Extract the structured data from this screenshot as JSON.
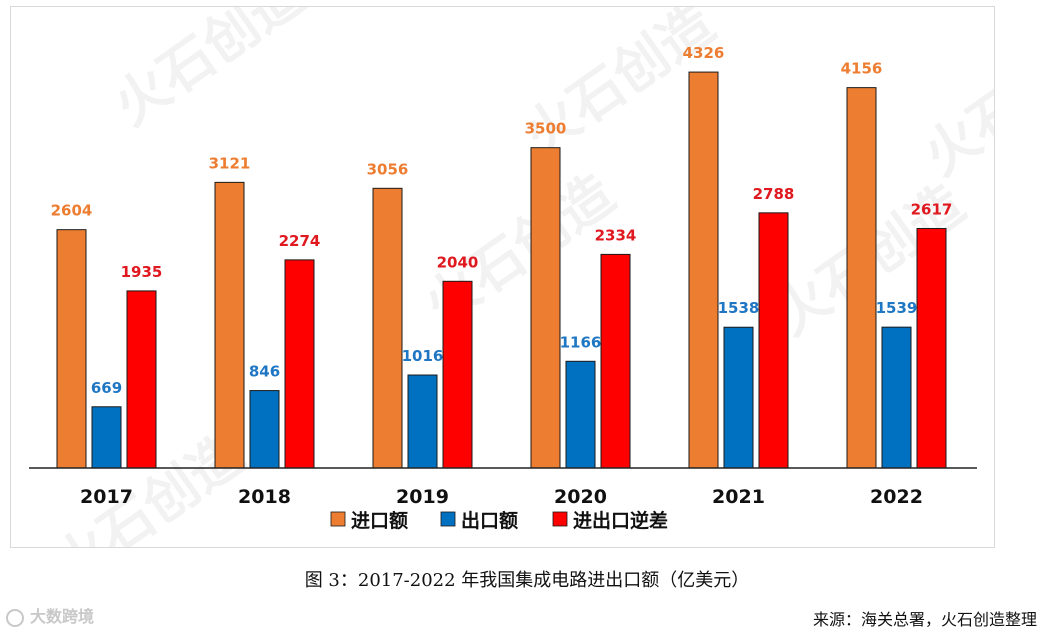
{
  "chart_data": {
    "type": "bar",
    "title": "",
    "xlabel": "",
    "ylabel": "",
    "ylim": [
      0,
      4600
    ],
    "grid": false,
    "categories": [
      "2017",
      "2018",
      "2019",
      "2020",
      "2021",
      "2022"
    ],
    "series": [
      {
        "name": "进口额",
        "color": "#ED7D31",
        "label_color": "#ED7D31",
        "values": [
          2604,
          3121,
          3056,
          3500,
          4326,
          4156
        ]
      },
      {
        "name": "出口额",
        "color": "#0070C0",
        "label_color": "#1F77C4",
        "values": [
          669,
          846,
          1016,
          1166,
          1538,
          1539
        ]
      },
      {
        "name": "进出口逆差",
        "color": "#FF0000",
        "label_color": "#E0181F",
        "values": [
          1935,
          2274,
          2040,
          2334,
          2788,
          2617
        ]
      }
    ],
    "legend_position": "bottom-center"
  },
  "watermark_text": "火石创造",
  "corner_mark_text": "大数跨境",
  "caption": "图 3：2017-2022 年我国集成电路进出口额（亿美元）",
  "source": "来源：海关总署，火石创造整理"
}
